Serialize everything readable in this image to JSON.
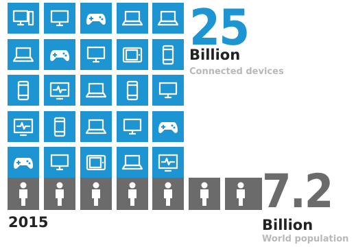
{
  "devices": {
    "count": "25",
    "unit": "Billion",
    "caption": "Connected devices",
    "tiles": [
      [
        "tower-monitor",
        "monitor",
        "gamepad",
        "laptop",
        "laptop"
      ],
      [
        "laptop",
        "gamepad",
        "monitor",
        "tablet-landscape",
        "phone"
      ],
      [
        "phone",
        "heartbeat-monitor",
        "laptop",
        "phone",
        "monitor"
      ],
      [
        "heartbeat-monitor",
        "phone",
        "laptop",
        "monitor",
        "gamepad"
      ],
      [
        "gamepad",
        "monitor",
        "tablet-landscape",
        "laptop",
        "heartbeat-monitor"
      ]
    ]
  },
  "population": {
    "count": "7.2",
    "unit": "Billion",
    "caption": "World population",
    "people_full": 7,
    "people_partial": 0.2
  },
  "year": "2015",
  "colors": {
    "device_tile": "#1e95d3",
    "person_tile": "#6b6b6b",
    "caption": "#b8b8b8"
  }
}
